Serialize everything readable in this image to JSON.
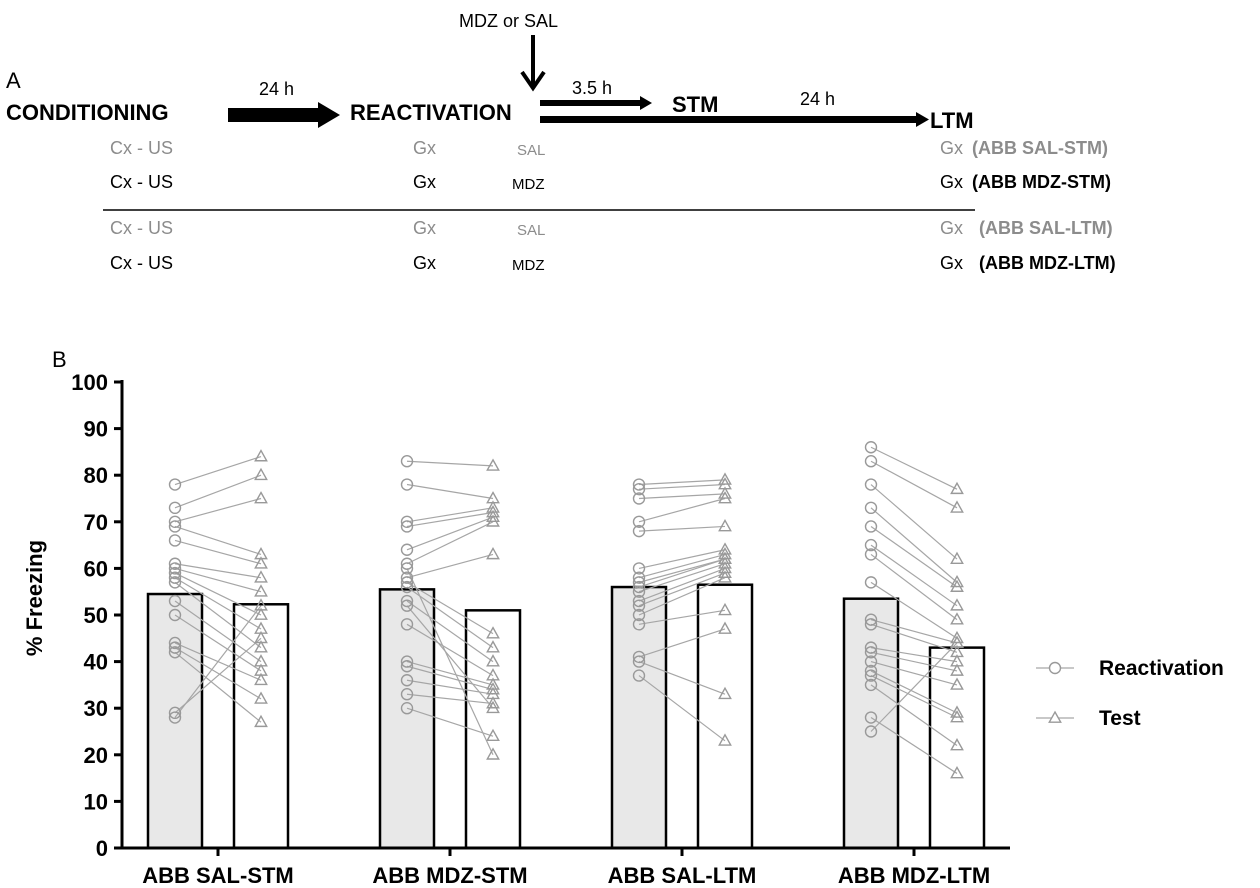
{
  "panel_a": {
    "label": "A",
    "drug_label": "MDZ or SAL",
    "stage_conditioning": "CONDITIONING",
    "stage_reactivation": "REACTIVATION",
    "stage_stm": "STM",
    "stage_ltm": "LTM",
    "delay_1": "24 h",
    "delay_2": "3.5 h",
    "delay_3": "24 h",
    "rows": [
      {
        "cond": "Cx - US",
        "react": "Gx",
        "drug": "SAL",
        "test_ctx": "Gx",
        "group": "(ABB SAL-STM)",
        "shade": "grey"
      },
      {
        "cond": "Cx - US",
        "react": "Gx",
        "drug": "MDZ",
        "test_ctx": "Gx",
        "group": "(ABB MDZ-STM)",
        "shade": "black"
      },
      {
        "cond": "Cx - US",
        "react": "Gx",
        "drug": "SAL",
        "test_ctx": "Gx",
        "group": "(ABB SAL-LTM)",
        "shade": "grey"
      },
      {
        "cond": "Cx - US",
        "react": "Gx",
        "drug": "MDZ",
        "test_ctx": "Gx",
        "group": "(ABB MDZ-LTM)",
        "shade": "black"
      }
    ]
  },
  "chart_data": {
    "panel_label": "B",
    "type": "bar",
    "ylabel": "% Freezing",
    "ylim": [
      0,
      100
    ],
    "yticks": [
      0,
      10,
      20,
      30,
      40,
      50,
      60,
      70,
      80,
      90,
      100
    ],
    "categories": [
      "ABB SAL-STM",
      "ABB MDZ-STM",
      "ABB SAL-LTM",
      "ABB MDZ-LTM"
    ],
    "legend": [
      {
        "name": "Reactivation",
        "marker": "circle"
      },
      {
        "name": "Test",
        "marker": "triangle"
      }
    ],
    "legend_position": "right",
    "colors": {
      "reactivation_fill": "#e8e8e8",
      "test_fill": "#ffffff",
      "points": "#999999",
      "links": "#a6a6a6"
    },
    "series": [
      {
        "name": "Reactivation",
        "values": [
          54.5,
          55.5,
          56.0,
          53.5
        ]
      },
      {
        "name": "Test",
        "values": [
          52.3,
          51.0,
          56.5,
          43.0
        ]
      }
    ],
    "individual": [
      {
        "reactivation": [
          78,
          73,
          70,
          69,
          66,
          61,
          60,
          59,
          58,
          57,
          53,
          50,
          44,
          43,
          42,
          29,
          28
        ],
        "test": [
          84,
          80,
          75,
          63,
          61,
          58,
          55,
          50,
          47,
          43,
          40,
          38,
          36,
          32,
          27,
          45,
          52
        ]
      },
      {
        "reactivation": [
          83,
          78,
          70,
          69,
          64,
          61,
          58,
          57,
          56,
          53,
          48,
          40,
          39,
          36,
          33,
          30,
          60,
          52
        ],
        "test": [
          82,
          75,
          73,
          72,
          71,
          70,
          63,
          46,
          43,
          40,
          37,
          35,
          34,
          33,
          31,
          24,
          20,
          30
        ]
      },
      {
        "reactivation": [
          78,
          77,
          75,
          70,
          68,
          60,
          58,
          56,
          55,
          53,
          50,
          48,
          41,
          40,
          37,
          57,
          52
        ],
        "test": [
          79,
          78,
          76,
          75,
          69,
          64,
          63,
          62,
          61,
          60,
          58,
          51,
          47,
          33,
          23,
          62,
          59
        ]
      },
      {
        "reactivation": [
          86,
          83,
          78,
          73,
          69,
          65,
          63,
          57,
          49,
          48,
          43,
          42,
          40,
          38,
          37,
          35,
          28,
          25
        ],
        "test": [
          77,
          73,
          62,
          57,
          56,
          52,
          49,
          45,
          44,
          42,
          40,
          38,
          35,
          29,
          28,
          22,
          16,
          44
        ]
      }
    ]
  }
}
